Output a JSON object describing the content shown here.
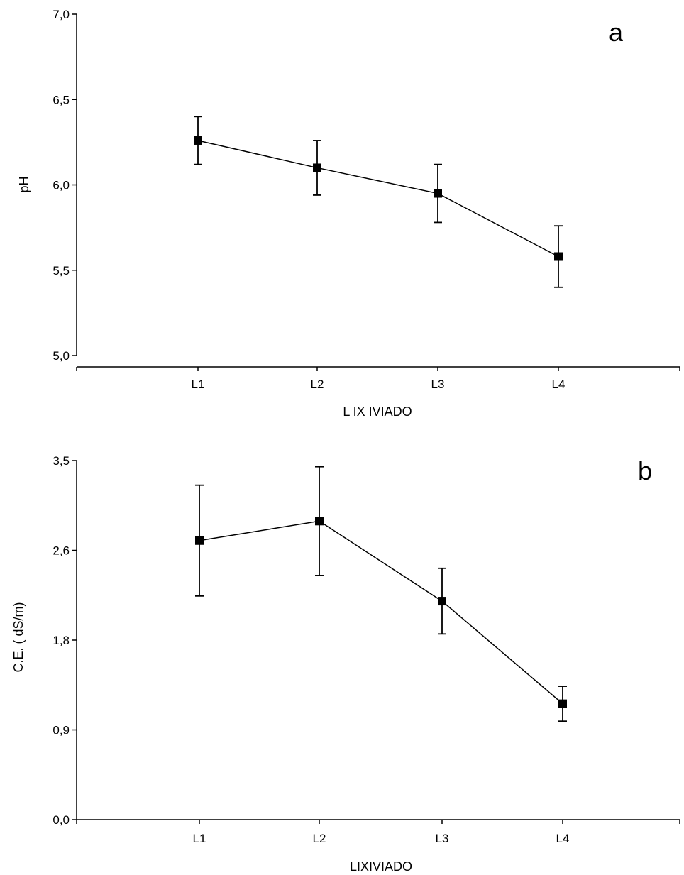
{
  "chart_data": [
    {
      "type": "line",
      "panel_label": "a",
      "xlabel": "L IX IVIADO",
      "ylabel": "pH",
      "categories": [
        "L1",
        "L2",
        "L3",
        "L4"
      ],
      "series": [
        {
          "values": [
            6.26,
            6.1,
            5.95,
            5.58
          ],
          "error": [
            0.14,
            0.16,
            0.17,
            0.18
          ]
        }
      ],
      "yticks": [
        "5,0",
        "5,5",
        "6,0",
        "6,5",
        "7,0"
      ],
      "ytick_values": [
        5.0,
        5.5,
        6.0,
        6.5,
        7.0
      ],
      "ylim": [
        5.0,
        7.0
      ],
      "grid": false,
      "marker": "square",
      "color": "#000000"
    },
    {
      "type": "line",
      "panel_label": "b",
      "xlabel": "LIXIVIADO",
      "ylabel": "C.E. ( dS/m)",
      "categories": [
        "L1",
        "L2",
        "L3",
        "L4"
      ],
      "series": [
        {
          "values": [
            2.72,
            2.91,
            2.13,
            1.13
          ],
          "error": [
            0.54,
            0.53,
            0.32,
            0.17
          ]
        }
      ],
      "yticks": [
        "0,0",
        "0,9",
        "1,8",
        "2,6",
        "3,5"
      ],
      "ytick_values": [
        0.0,
        0.875,
        1.75,
        2.625,
        3.5
      ],
      "ylim": [
        0.0,
        3.5
      ],
      "grid": false,
      "marker": "square",
      "color": "#000000"
    }
  ]
}
